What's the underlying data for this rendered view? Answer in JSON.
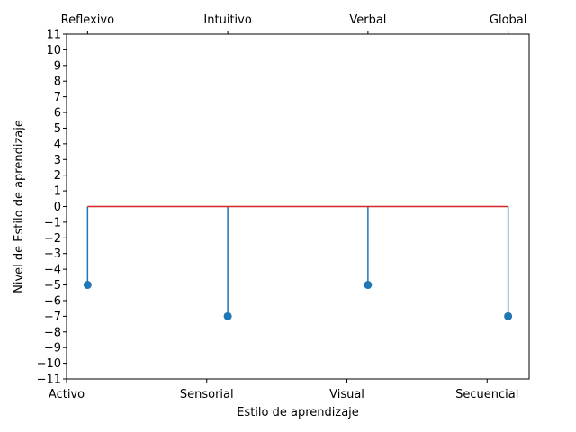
{
  "chart_data": {
    "type": "stem",
    "xlabel": "Estilo de aprendizaje",
    "ylabel": "Nivel de Estilo de aprendizaje",
    "bottom_tick_labels": [
      "Activo",
      "Sensorial",
      "Visual",
      "Secuencial"
    ],
    "top_tick_labels": [
      "Reflexivo",
      "Intuitivo",
      "Verbal",
      "Global"
    ],
    "x_positions": [
      0.15,
      1.15,
      2.15,
      3.15
    ],
    "values": [
      -5,
      -7,
      -5,
      -7
    ],
    "xlim": [
      0,
      3.3
    ],
    "ylim": [
      -11,
      11
    ],
    "yticks": [
      -11,
      -10,
      -9,
      -8,
      -7,
      -6,
      -5,
      -4,
      -3,
      -2,
      -1,
      0,
      1,
      2,
      3,
      4,
      5,
      6,
      7,
      8,
      9,
      10,
      11
    ],
    "baseline": 0,
    "grid": false,
    "colors": {
      "stem": "#1f77b4",
      "marker": "#1f77b4",
      "baseline": "#d62728",
      "axes": "#000000"
    }
  }
}
